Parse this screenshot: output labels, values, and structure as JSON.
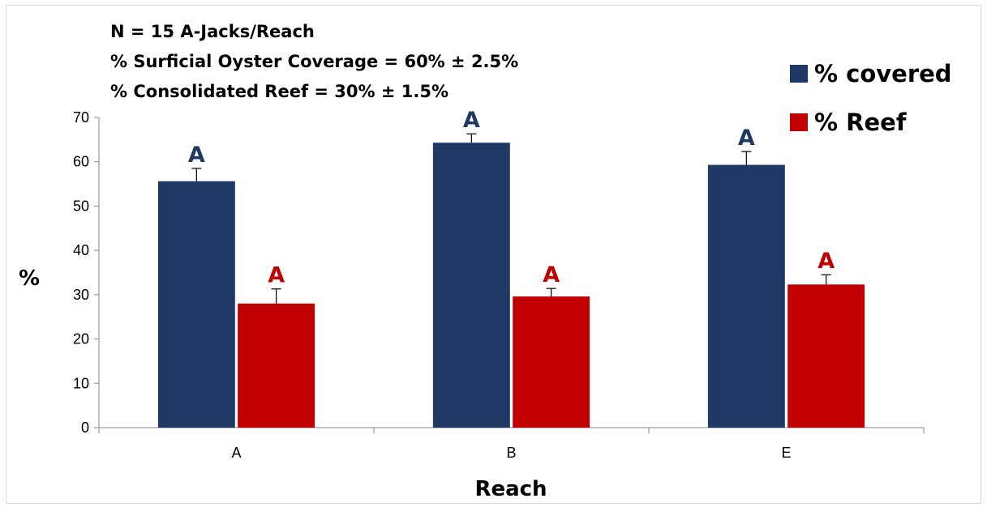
{
  "chart_data": {
    "type": "bar",
    "annotations": [
      "N = 15 A-Jacks/Reach",
      "% Surficial Oyster Coverage = 60% ± 2.5%",
      "% Consolidated Reef = 30% ± 1.5%"
    ],
    "categories": [
      "A",
      "B",
      "E"
    ],
    "xlabel": "Reach",
    "ylabel": "%",
    "ylim": [
      0,
      70
    ],
    "yticks": [
      0,
      10,
      20,
      30,
      40,
      50,
      60,
      70
    ],
    "grid": false,
    "legend_position": "top-right",
    "series": [
      {
        "name": "% covered",
        "color": "#1f3864",
        "values": [
          55.6,
          64.3,
          59.3
        ],
        "errors": [
          2.9,
          2.0,
          3.0
        ],
        "labels": [
          "A",
          "A",
          "A"
        ]
      },
      {
        "name": "% Reef",
        "color": "#c00000",
        "values": [
          28.0,
          29.6,
          32.3
        ],
        "errors": [
          3.3,
          1.8,
          2.2
        ],
        "labels": [
          "A",
          "A",
          "A"
        ]
      }
    ]
  }
}
